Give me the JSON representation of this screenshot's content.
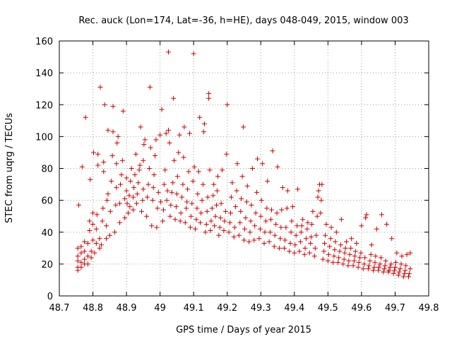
{
  "chart_data": {
    "type": "scatter",
    "title": "Rec. auck (Lon=174, Lat=-36, h=HE), days 048-049, 2015, window 003",
    "xlabel": "GPS time / Days of year 2015",
    "ylabel": "STEC from uqrg / TECUs",
    "xlim": [
      48.7,
      49.8
    ],
    "ylim": [
      0,
      160
    ],
    "xticks": [
      "48.7",
      "48.8",
      "48.9",
      "49",
      "49.1",
      "49.2",
      "49.3",
      "49.4",
      "49.5",
      "49.6",
      "49.7",
      "49.8"
    ],
    "yticks": [
      "0",
      "20",
      "40",
      "60",
      "80",
      "100",
      "120",
      "140",
      "160"
    ],
    "grid": true,
    "marker": "+",
    "color": "#cc0000",
    "points": [
      [
        48.755,
        16
      ],
      [
        48.755,
        18
      ],
      [
        48.755,
        22
      ],
      [
        48.755,
        25
      ],
      [
        48.755,
        30
      ],
      [
        48.758,
        57
      ],
      [
        48.765,
        18
      ],
      [
        48.765,
        21
      ],
      [
        48.765,
        27
      ],
      [
        48.765,
        31
      ],
      [
        48.768,
        81
      ],
      [
        48.775,
        20
      ],
      [
        48.775,
        23
      ],
      [
        48.775,
        28
      ],
      [
        48.775,
        34
      ],
      [
        48.778,
        112
      ],
      [
        48.785,
        20
      ],
      [
        48.785,
        25
      ],
      [
        48.785,
        33
      ],
      [
        48.79,
        41
      ],
      [
        48.79,
        47
      ],
      [
        48.792,
        73
      ],
      [
        48.795,
        24
      ],
      [
        48.795,
        28
      ],
      [
        48.8,
        35
      ],
      [
        48.8,
        45
      ],
      [
        48.8,
        52
      ],
      [
        48.802,
        90
      ],
      [
        48.805,
        27
      ],
      [
        48.81,
        33
      ],
      [
        48.81,
        42
      ],
      [
        48.812,
        51
      ],
      [
        48.815,
        82
      ],
      [
        48.815,
        89
      ],
      [
        48.82,
        30
      ],
      [
        48.82,
        36
      ],
      [
        48.822,
        131
      ],
      [
        48.825,
        32
      ],
      [
        48.828,
        47
      ],
      [
        48.83,
        55
      ],
      [
        48.832,
        78
      ],
      [
        48.832,
        84
      ],
      [
        48.835,
        120
      ],
      [
        48.84,
        36
      ],
      [
        48.84,
        44
      ],
      [
        48.842,
        60
      ],
      [
        48.845,
        64
      ],
      [
        48.845,
        104
      ],
      [
        48.85,
        38
      ],
      [
        48.852,
        53
      ],
      [
        48.855,
        72
      ],
      [
        48.858,
        88
      ],
      [
        48.86,
        103
      ],
      [
        48.86,
        119
      ],
      [
        48.865,
        40
      ],
      [
        48.868,
        57
      ],
      [
        48.87,
        68
      ],
      [
        48.87,
        83
      ],
      [
        48.872,
        96
      ],
      [
        48.875,
        100
      ],
      [
        48.88,
        46
      ],
      [
        48.88,
        58
      ],
      [
        48.882,
        70
      ],
      [
        48.885,
        76
      ],
      [
        48.888,
        85
      ],
      [
        48.89,
        116
      ],
      [
        48.895,
        49
      ],
      [
        48.895,
        61
      ],
      [
        48.9,
        66
      ],
      [
        48.9,
        74
      ],
      [
        48.902,
        58
      ],
      [
        48.905,
        52
      ],
      [
        48.908,
        63
      ],
      [
        48.91,
        56
      ],
      [
        48.912,
        72
      ],
      [
        48.915,
        80
      ],
      [
        48.92,
        54
      ],
      [
        48.92,
        62
      ],
      [
        48.922,
        68
      ],
      [
        48.925,
        76
      ],
      [
        48.928,
        89
      ],
      [
        48.93,
        58
      ],
      [
        48.932,
        64
      ],
      [
        48.935,
        71
      ],
      [
        48.938,
        79
      ],
      [
        48.94,
        82
      ],
      [
        48.942,
        106
      ],
      [
        48.945,
        53
      ],
      [
        48.948,
        60
      ],
      [
        48.95,
        67
      ],
      [
        48.95,
        85
      ],
      [
        48.952,
        95
      ],
      [
        48.955,
        98
      ],
      [
        48.96,
        50
      ],
      [
        48.962,
        62
      ],
      [
        48.965,
        70
      ],
      [
        48.968,
        80
      ],
      [
        48.97,
        131
      ],
      [
        48.972,
        93
      ],
      [
        48.975,
        44
      ],
      [
        48.978,
        60
      ],
      [
        48.98,
        68
      ],
      [
        48.982,
        76
      ],
      [
        48.985,
        88
      ],
      [
        48.988,
        98
      ],
      [
        48.99,
        43
      ],
      [
        48.992,
        55
      ],
      [
        48.995,
        65
      ],
      [
        49.0,
        101
      ],
      [
        49.002,
        59
      ],
      [
        49.005,
        117
      ],
      [
        49.008,
        47
      ],
      [
        49.01,
        54
      ],
      [
        49.012,
        70
      ],
      [
        49.015,
        79
      ],
      [
        49.018,
        102
      ],
      [
        49.02,
        60
      ],
      [
        49.022,
        66
      ],
      [
        49.025,
        153
      ],
      [
        49.025,
        104
      ],
      [
        49.028,
        96
      ],
      [
        49.03,
        50
      ],
      [
        49.032,
        57
      ],
      [
        49.035,
        65
      ],
      [
        49.038,
        71
      ],
      [
        49.04,
        124
      ],
      [
        49.042,
        85
      ],
      [
        49.045,
        48
      ],
      [
        49.048,
        56
      ],
      [
        49.05,
        64
      ],
      [
        49.052,
        75
      ],
      [
        49.055,
        90
      ],
      [
        49.058,
        101
      ],
      [
        49.06,
        47
      ],
      [
        49.062,
        52
      ],
      [
        49.065,
        62
      ],
      [
        49.068,
        70
      ],
      [
        49.07,
        87
      ],
      [
        49.072,
        106
      ],
      [
        49.075,
        46
      ],
      [
        49.078,
        55
      ],
      [
        49.08,
        59
      ],
      [
        49.082,
        67
      ],
      [
        49.085,
        78
      ],
      [
        49.088,
        102
      ],
      [
        49.09,
        43
      ],
      [
        49.092,
        50
      ],
      [
        49.095,
        58
      ],
      [
        49.098,
        72
      ],
      [
        49.1,
        152
      ],
      [
        49.102,
        81
      ],
      [
        49.105,
        42
      ],
      [
        49.108,
        48
      ],
      [
        49.11,
        55
      ],
      [
        49.112,
        64
      ],
      [
        49.115,
        78
      ],
      [
        49.118,
        112
      ],
      [
        49.12,
        46
      ],
      [
        49.122,
        52
      ],
      [
        49.125,
        60
      ],
      [
        49.128,
        70
      ],
      [
        49.13,
        103
      ],
      [
        49.132,
        108
      ],
      [
        49.135,
        40
      ],
      [
        49.138,
        45
      ],
      [
        49.14,
        53
      ],
      [
        49.142,
        62
      ],
      [
        49.145,
        127
      ],
      [
        49.145,
        124
      ],
      [
        49.148,
        79
      ],
      [
        49.15,
        41
      ],
      [
        49.152,
        47
      ],
      [
        49.155,
        55
      ],
      [
        49.158,
        63
      ],
      [
        49.16,
        70
      ],
      [
        49.162,
        44
      ],
      [
        49.165,
        50
      ],
      [
        49.168,
        57
      ],
      [
        49.17,
        66
      ],
      [
        49.172,
        75
      ],
      [
        49.175,
        38
      ],
      [
        49.178,
        43
      ],
      [
        49.18,
        49
      ],
      [
        49.182,
        58
      ],
      [
        49.185,
        79
      ],
      [
        49.19,
        41
      ],
      [
        49.192,
        47
      ],
      [
        49.195,
        53
      ],
      [
        49.198,
        89
      ],
      [
        49.2,
        120
      ],
      [
        49.205,
        40
      ],
      [
        49.208,
        46
      ],
      [
        49.21,
        52
      ],
      [
        49.212,
        62
      ],
      [
        49.215,
        71
      ],
      [
        49.22,
        37
      ],
      [
        49.222,
        43
      ],
      [
        49.225,
        56
      ],
      [
        49.228,
        66
      ],
      [
        49.23,
        83
      ],
      [
        49.235,
        38
      ],
      [
        49.238,
        46
      ],
      [
        49.24,
        53
      ],
      [
        49.242,
        61
      ],
      [
        49.245,
        75
      ],
      [
        49.248,
        106
      ],
      [
        49.25,
        35
      ],
      [
        49.252,
        42
      ],
      [
        49.255,
        49
      ],
      [
        49.258,
        59
      ],
      [
        49.26,
        69
      ],
      [
        49.265,
        34
      ],
      [
        49.268,
        40
      ],
      [
        49.27,
        47
      ],
      [
        49.272,
        57
      ],
      [
        49.275,
        80
      ],
      [
        49.28,
        35
      ],
      [
        49.282,
        44
      ],
      [
        49.285,
        52
      ],
      [
        49.288,
        65
      ],
      [
        49.29,
        86
      ],
      [
        49.295,
        36
      ],
      [
        49.298,
        42
      ],
      [
        49.3,
        50
      ],
      [
        49.302,
        60
      ],
      [
        49.305,
        83
      ],
      [
        49.31,
        33
      ],
      [
        49.312,
        40
      ],
      [
        49.315,
        47
      ],
      [
        49.318,
        55
      ],
      [
        49.32,
        72
      ],
      [
        49.325,
        34
      ],
      [
        49.328,
        40
      ],
      [
        49.33,
        48
      ],
      [
        49.332,
        54
      ],
      [
        49.335,
        91
      ],
      [
        49.34,
        31
      ],
      [
        49.342,
        38
      ],
      [
        49.345,
        45
      ],
      [
        49.348,
        52
      ],
      [
        49.35,
        81
      ],
      [
        49.355,
        30
      ],
      [
        49.358,
        36
      ],
      [
        49.36,
        43
      ],
      [
        49.362,
        54
      ],
      [
        49.365,
        68
      ],
      [
        49.37,
        30
      ],
      [
        49.372,
        35
      ],
      [
        49.375,
        43
      ],
      [
        49.378,
        55
      ],
      [
        49.38,
        66
      ],
      [
        49.385,
        28
      ],
      [
        49.388,
        33
      ],
      [
        49.39,
        40
      ],
      [
        49.392,
        47
      ],
      [
        49.395,
        56
      ],
      [
        49.4,
        27
      ],
      [
        49.402,
        32
      ],
      [
        49.405,
        38
      ],
      [
        49.408,
        44
      ],
      [
        49.41,
        67
      ],
      [
        49.415,
        28
      ],
      [
        49.418,
        34
      ],
      [
        49.42,
        40
      ],
      [
        49.422,
        44
      ],
      [
        49.425,
        48
      ],
      [
        49.43,
        26
      ],
      [
        49.432,
        30
      ],
      [
        49.435,
        36
      ],
      [
        49.438,
        42
      ],
      [
        49.44,
        46
      ],
      [
        49.445,
        27
      ],
      [
        49.448,
        33
      ],
      [
        49.45,
        37
      ],
      [
        49.452,
        45
      ],
      [
        49.455,
        53
      ],
      [
        49.46,
        25
      ],
      [
        49.462,
        30
      ],
      [
        49.465,
        38
      ],
      [
        49.468,
        50
      ],
      [
        49.47,
        62
      ],
      [
        49.472,
        66
      ],
      [
        49.475,
        70
      ],
      [
        49.478,
        52
      ],
      [
        49.48,
        60
      ],
      [
        49.482,
        70
      ],
      [
        49.485,
        23
      ],
      [
        49.488,
        28
      ],
      [
        49.49,
        33
      ],
      [
        49.492,
        38
      ],
      [
        49.495,
        45
      ],
      [
        49.5,
        22
      ],
      [
        49.502,
        26
      ],
      [
        49.505,
        31
      ],
      [
        49.508,
        36
      ],
      [
        49.51,
        43
      ],
      [
        49.515,
        21
      ],
      [
        49.518,
        25
      ],
      [
        49.52,
        29
      ],
      [
        49.522,
        34
      ],
      [
        49.525,
        40
      ],
      [
        49.53,
        21
      ],
      [
        49.532,
        24
      ],
      [
        49.535,
        28
      ],
      [
        49.538,
        32
      ],
      [
        49.54,
        48
      ],
      [
        49.545,
        20
      ],
      [
        49.548,
        23
      ],
      [
        49.55,
        27
      ],
      [
        49.552,
        30
      ],
      [
        49.555,
        34
      ],
      [
        49.56,
        19
      ],
      [
        49.562,
        22
      ],
      [
        49.565,
        26
      ],
      [
        49.568,
        30
      ],
      [
        49.57,
        36
      ],
      [
        49.575,
        19
      ],
      [
        49.578,
        22
      ],
      [
        49.58,
        25
      ],
      [
        49.582,
        28
      ],
      [
        49.585,
        33
      ],
      [
        49.59,
        18
      ],
      [
        49.592,
        21
      ],
      [
        49.595,
        24
      ],
      [
        49.598,
        27
      ],
      [
        49.6,
        44
      ],
      [
        49.605,
        17
      ],
      [
        49.608,
        20
      ],
      [
        49.61,
        24
      ],
      [
        49.612,
        49
      ],
      [
        49.615,
        51
      ],
      [
        49.62,
        17
      ],
      [
        49.622,
        19
      ],
      [
        49.625,
        22
      ],
      [
        49.628,
        26
      ],
      [
        49.63,
        32
      ],
      [
        49.635,
        16
      ],
      [
        49.638,
        18
      ],
      [
        49.64,
        21
      ],
      [
        49.642,
        25
      ],
      [
        49.645,
        42
      ],
      [
        49.65,
        16
      ],
      [
        49.652,
        18
      ],
      [
        49.655,
        20
      ],
      [
        49.658,
        24
      ],
      [
        49.66,
        51
      ],
      [
        49.665,
        15
      ],
      [
        49.668,
        17
      ],
      [
        49.67,
        19
      ],
      [
        49.672,
        22
      ],
      [
        49.675,
        45
      ],
      [
        49.68,
        15
      ],
      [
        49.682,
        16
      ],
      [
        49.685,
        18
      ],
      [
        49.688,
        20
      ],
      [
        49.69,
        36
      ],
      [
        49.695,
        14
      ],
      [
        49.698,
        16
      ],
      [
        49.7,
        18
      ],
      [
        49.702,
        21
      ],
      [
        49.705,
        27
      ],
      [
        49.71,
        13
      ],
      [
        49.712,
        15
      ],
      [
        49.715,
        17
      ],
      [
        49.718,
        20
      ],
      [
        49.72,
        25
      ],
      [
        49.725,
        12
      ],
      [
        49.728,
        14
      ],
      [
        49.73,
        16
      ],
      [
        49.732,
        19
      ],
      [
        49.735,
        26
      ],
      [
        49.74,
        12
      ],
      [
        49.742,
        14
      ],
      [
        49.745,
        17
      ],
      [
        49.745,
        27
      ]
    ]
  }
}
